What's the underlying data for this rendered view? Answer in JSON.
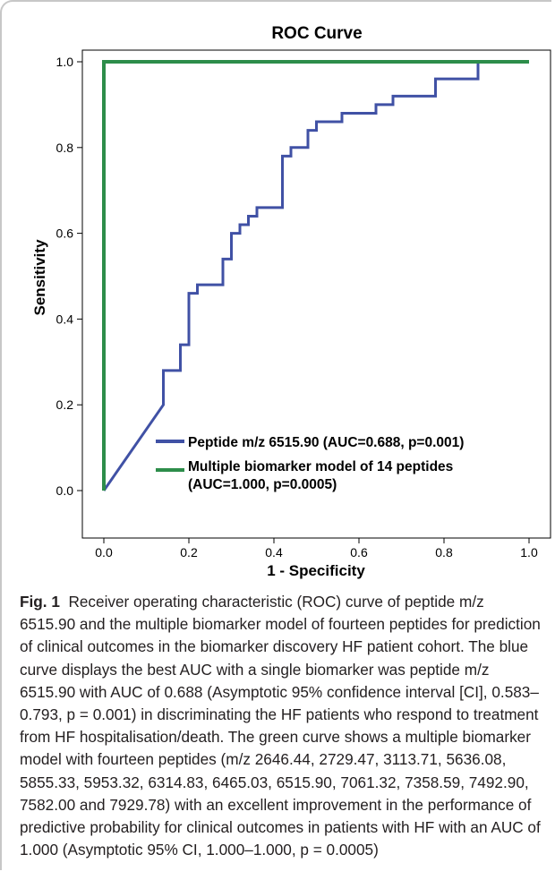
{
  "chart_data": {
    "type": "line",
    "title": "ROC Curve",
    "xlabel": "1 - Specificity",
    "ylabel": "Sensitivity",
    "xlim": [
      0.0,
      1.0
    ],
    "ylim": [
      0.0,
      1.0
    ],
    "xticks": [
      "0.0",
      "0.2",
      "0.4",
      "0.6",
      "0.8",
      "1.0"
    ],
    "yticks": [
      "0.0",
      "0.2",
      "0.4",
      "0.6",
      "0.8",
      "1.0"
    ],
    "grid": false,
    "legend_position": "bottom-right",
    "series": [
      {
        "name": "Peptide m/z 6515.90 (AUC=0.688, p=0.001)",
        "color": "#4051a5",
        "points": [
          [
            0,
            0
          ],
          [
            0.14,
            0.2
          ],
          [
            0.14,
            0.28
          ],
          [
            0.18,
            0.28
          ],
          [
            0.18,
            0.34
          ],
          [
            0.2,
            0.34
          ],
          [
            0.2,
            0.46
          ],
          [
            0.22,
            0.46
          ],
          [
            0.22,
            0.48
          ],
          [
            0.28,
            0.48
          ],
          [
            0.28,
            0.54
          ],
          [
            0.3,
            0.54
          ],
          [
            0.3,
            0.6
          ],
          [
            0.32,
            0.6
          ],
          [
            0.32,
            0.62
          ],
          [
            0.34,
            0.62
          ],
          [
            0.34,
            0.64
          ],
          [
            0.36,
            0.64
          ],
          [
            0.36,
            0.66
          ],
          [
            0.42,
            0.66
          ],
          [
            0.42,
            0.78
          ],
          [
            0.44,
            0.78
          ],
          [
            0.44,
            0.8
          ],
          [
            0.48,
            0.8
          ],
          [
            0.48,
            0.84
          ],
          [
            0.5,
            0.84
          ],
          [
            0.5,
            0.86
          ],
          [
            0.56,
            0.86
          ],
          [
            0.56,
            0.88
          ],
          [
            0.64,
            0.88
          ],
          [
            0.64,
            0.9
          ],
          [
            0.68,
            0.9
          ],
          [
            0.68,
            0.92
          ],
          [
            0.78,
            0.92
          ],
          [
            0.78,
            0.96
          ],
          [
            0.88,
            0.96
          ],
          [
            0.88,
            1.0
          ],
          [
            1.0,
            1.0
          ]
        ]
      },
      {
        "name": "Multiple biomarker model of 14 peptides (AUC=1.000, p=0.0005)",
        "color": "#2d8d4a",
        "points": [
          [
            0,
            0
          ],
          [
            0,
            1.0
          ],
          [
            1.0,
            1.0
          ]
        ]
      }
    ]
  },
  "legend": {
    "entry1": "Peptide m/z 6515.90 (AUC=0.688, p=0.001)",
    "entry2_line1": "Multiple biomarker model of 14 peptides",
    "entry2_line2": "(AUC=1.000, p=0.0005)"
  },
  "caption": {
    "label": "Fig. 1",
    "text": "Receiver operating characteristic (ROC) curve of peptide m/z 6515.90 and the multiple biomarker model of fourteen peptides for prediction of clinical outcomes in the biomarker discovery HF patient cohort. The blue curve displays the best AUC with a single biomarker was peptide m/z 6515.90 with AUC of 0.688 (Asymptotic 95% confidence interval [CI], 0.583–0.793, p = 0.001) in discriminating the HF patients who respond to treatment from HF hospitalisation/death. The green curve shows a multiple biomarker model with fourteen peptides (m/z 2646.44, 2729.47, 3113.71, 5636.08, 5855.33, 5953.32, 6314.83, 6465.03, 6515.90, 7061.32, 7358.59, 7492.90, 7582.00 and 7929.78) with an excellent improvement in the performance of predictive probability for clinical outcomes in patients with HF with an AUC of 1.000 (Asymptotic 95% CI, 1.000–1.000, p = 0.0005)"
  }
}
